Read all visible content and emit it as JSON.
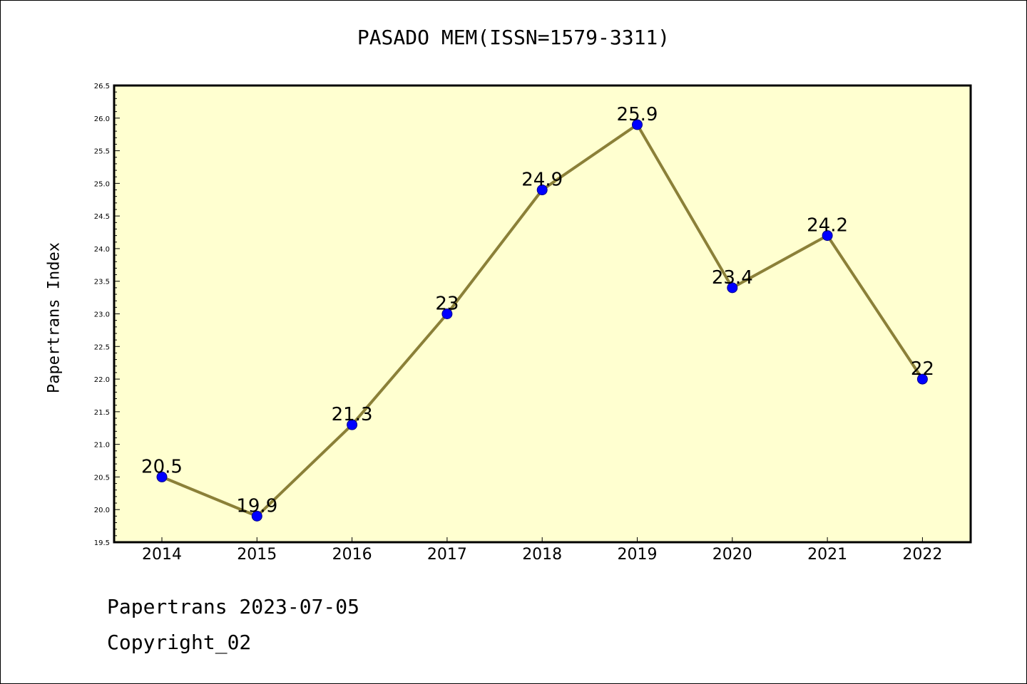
{
  "page": {
    "title": "PASADO MEM(ISSN=1579-3311)",
    "footer_line1": "Papertrans 2023-07-05",
    "footer_line2": "Copyright_02"
  },
  "colors": {
    "plot_background": "#ffffd0",
    "line": "#8b8038",
    "marker": "#0000ff",
    "axis": "#000000"
  },
  "chart_data": {
    "type": "line",
    "title": "PASADO MEM(ISSN=1579-3311)",
    "xlabel": "",
    "ylabel": "Papertrans Index",
    "categories": [
      "2014",
      "2015",
      "2016",
      "2017",
      "2018",
      "2019",
      "2020",
      "2021",
      "2022"
    ],
    "series": [
      {
        "values": [
          20.5,
          19.9,
          21.3,
          23,
          24.9,
          25.9,
          23.4,
          24.2,
          22
        ],
        "data_labels": [
          "20.5",
          "19.9",
          "21.3",
          "23",
          "24.9",
          "25.9",
          "23.4",
          "24.2",
          "22"
        ]
      }
    ],
    "ylim": [
      19.5,
      26.5
    ],
    "yticks": [
      "19.5",
      "20.0",
      "20.5",
      "21.0",
      "21.5",
      "22.0",
      "22.5",
      "23.0",
      "23.5",
      "24.0",
      "24.5",
      "25.0",
      "25.5",
      "26.0",
      "26.5"
    ],
    "grid": false,
    "legend": "none"
  }
}
